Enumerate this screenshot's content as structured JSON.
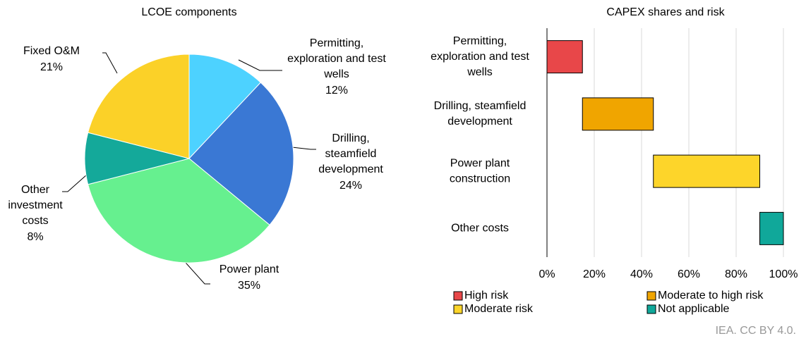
{
  "chart_data": [
    {
      "type": "pie",
      "title": "LCOE components",
      "labels": [
        [
          "Permitting,",
          "exploration and test",
          "wells"
        ],
        [
          "Drilling,",
          "steamfield",
          "development"
        ],
        [
          "Power plant"
        ],
        [
          "Other",
          "investment",
          "costs"
        ],
        [
          "Fixed O&M"
        ]
      ],
      "values": [
        12,
        24,
        35,
        8,
        21
      ],
      "value_labels": [
        "12%",
        "24%",
        "35%",
        "8%",
        "21%"
      ],
      "colors": [
        "#4dd2ff",
        "#3a78d4",
        "#66f08f",
        "#14a99a",
        "#fbd128"
      ]
    },
    {
      "type": "waterfall",
      "title": "CAPEX shares and risk",
      "categories": [
        [
          "Permitting,",
          "exploration and test",
          "wells"
        ],
        [
          "Drilling, steamfield",
          "development"
        ],
        [
          "Power plant",
          "construction"
        ],
        [
          "Other costs"
        ]
      ],
      "series": [
        {
          "name": "High risk",
          "color": "#e84749",
          "values": [
            15,
            null,
            null,
            null
          ]
        },
        {
          "name": "Moderate to high risk",
          "color": "#f0a500",
          "values": [
            null,
            30,
            null,
            null
          ]
        },
        {
          "name": "Moderate risk",
          "color": "#fdd52a",
          "values": [
            null,
            null,
            45,
            null
          ]
        },
        {
          "name": "Not applicable",
          "color": "#10a89a",
          "values": [
            null,
            null,
            null,
            10
          ]
        }
      ],
      "xlim": [
        0,
        100
      ],
      "xticks": [
        {
          "value": 0,
          "label": "0%"
        },
        {
          "value": 20,
          "label": "20%"
        },
        {
          "value": 40,
          "label": "40%"
        },
        {
          "value": 60,
          "label": "60%"
        },
        {
          "value": 80,
          "label": "80%"
        },
        {
          "value": 100,
          "label": "100%"
        }
      ],
      "grid": true
    },
    {
      "type": "note",
      "text": "IEA. CC BY 4.0."
    }
  ]
}
